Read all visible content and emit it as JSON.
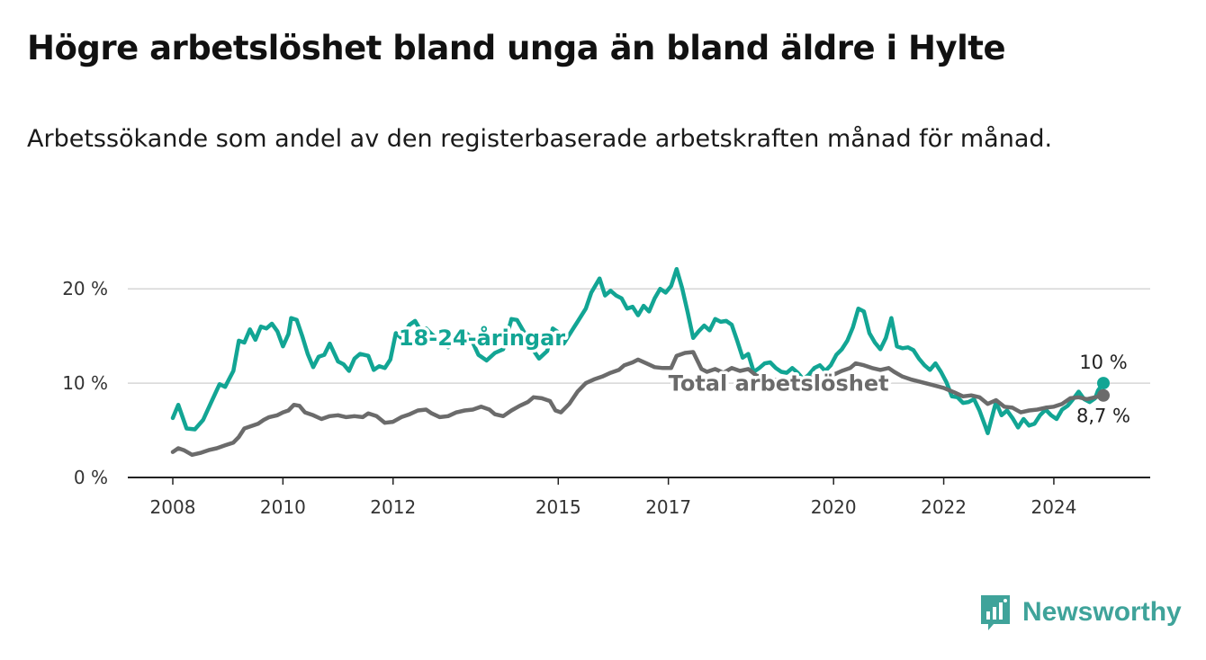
{
  "title": "Högre arbetslöshet bland unga än bland äldre i Hylte",
  "subtitle": "Arbetssökande som andel av den registerbaserade arbetskraften månad för månad.",
  "brand": {
    "name": "Newsworthy",
    "icon": "bar-chart-speech-icon",
    "color": "#3fa39a"
  },
  "chart_data": {
    "type": "line",
    "x_range": [
      2008.0,
      2024.9
    ],
    "ylim": [
      0,
      22.5
    ],
    "y_ticks": [
      0,
      10,
      20
    ],
    "y_tick_labels": [
      "0 %",
      "10 %",
      "20 %"
    ],
    "x_ticks": [
      2008,
      2010,
      2012,
      2015,
      2017,
      2020,
      2022,
      2024
    ],
    "x_tick_labels": [
      "2008",
      "2010",
      "2012",
      "2015",
      "2017",
      "2020",
      "2022",
      "2024"
    ],
    "grid": "horizontal",
    "series": [
      {
        "name": "18-24-åringar",
        "color": "#12a594",
        "end_label": "10 %",
        "points": [
          [
            2008.0,
            6.3
          ],
          [
            2008.1,
            7.7
          ],
          [
            2008.25,
            5.2
          ],
          [
            2008.4,
            5.1
          ],
          [
            2008.55,
            6.1
          ],
          [
            2008.7,
            8.0
          ],
          [
            2008.85,
            9.9
          ],
          [
            2008.95,
            9.6
          ],
          [
            2009.1,
            11.3
          ],
          [
            2009.2,
            14.5
          ],
          [
            2009.3,
            14.3
          ],
          [
            2009.4,
            15.7
          ],
          [
            2009.5,
            14.6
          ],
          [
            2009.6,
            16.0
          ],
          [
            2009.7,
            15.8
          ],
          [
            2009.8,
            16.3
          ],
          [
            2009.9,
            15.5
          ],
          [
            2010.0,
            13.9
          ],
          [
            2010.1,
            15.2
          ],
          [
            2010.15,
            16.9
          ],
          [
            2010.25,
            16.7
          ],
          [
            2010.35,
            15.0
          ],
          [
            2010.45,
            13.1
          ],
          [
            2010.55,
            11.7
          ],
          [
            2010.65,
            12.8
          ],
          [
            2010.75,
            13.0
          ],
          [
            2010.85,
            14.2
          ],
          [
            2011.0,
            12.3
          ],
          [
            2011.1,
            12.0
          ],
          [
            2011.2,
            11.3
          ],
          [
            2011.3,
            12.6
          ],
          [
            2011.4,
            13.1
          ],
          [
            2011.55,
            12.9
          ],
          [
            2011.65,
            11.4
          ],
          [
            2011.75,
            11.8
          ],
          [
            2011.85,
            11.6
          ],
          [
            2011.95,
            12.5
          ],
          [
            2012.05,
            15.3
          ],
          [
            2012.15,
            14.8
          ],
          [
            2012.3,
            16.2
          ],
          [
            2012.4,
            16.6
          ],
          [
            2012.5,
            15.6
          ],
          [
            2012.6,
            15.8
          ],
          [
            2012.7,
            15.2
          ],
          [
            2012.85,
            14.5
          ],
          [
            2013.0,
            13.8
          ],
          [
            2013.15,
            15.2
          ],
          [
            2013.3,
            15.5
          ],
          [
            2013.4,
            14.9
          ],
          [
            2013.55,
            13.0
          ],
          [
            2013.7,
            12.4
          ],
          [
            2013.85,
            13.2
          ],
          [
            2014.0,
            13.6
          ],
          [
            2014.15,
            16.8
          ],
          [
            2014.25,
            16.7
          ],
          [
            2014.4,
            15.2
          ],
          [
            2014.5,
            13.9
          ],
          [
            2014.65,
            12.6
          ],
          [
            2014.8,
            13.4
          ],
          [
            2014.9,
            15.8
          ],
          [
            2015.0,
            15.4
          ],
          [
            2015.1,
            14.2
          ],
          [
            2015.25,
            15.6
          ],
          [
            2015.35,
            16.5
          ],
          [
            2015.5,
            17.9
          ],
          [
            2015.6,
            19.6
          ],
          [
            2015.75,
            21.1
          ],
          [
            2015.85,
            19.3
          ],
          [
            2015.95,
            19.8
          ],
          [
            2016.05,
            19.3
          ],
          [
            2016.15,
            19.0
          ],
          [
            2016.25,
            17.9
          ],
          [
            2016.35,
            18.1
          ],
          [
            2016.45,
            17.2
          ],
          [
            2016.55,
            18.2
          ],
          [
            2016.65,
            17.6
          ],
          [
            2016.75,
            19.0
          ],
          [
            2016.85,
            20.0
          ],
          [
            2016.95,
            19.6
          ],
          [
            2017.05,
            20.3
          ],
          [
            2017.15,
            22.1
          ],
          [
            2017.25,
            20.1
          ],
          [
            2017.35,
            17.5
          ],
          [
            2017.45,
            14.8
          ],
          [
            2017.55,
            15.5
          ],
          [
            2017.65,
            16.1
          ],
          [
            2017.75,
            15.6
          ],
          [
            2017.85,
            16.8
          ],
          [
            2017.95,
            16.5
          ],
          [
            2018.05,
            16.6
          ],
          [
            2018.15,
            16.2
          ],
          [
            2018.25,
            14.5
          ],
          [
            2018.35,
            12.7
          ],
          [
            2018.45,
            13.1
          ],
          [
            2018.55,
            11.2
          ],
          [
            2018.65,
            11.6
          ],
          [
            2018.75,
            12.1
          ],
          [
            2018.85,
            12.2
          ],
          [
            2018.95,
            11.6
          ],
          [
            2019.05,
            11.2
          ],
          [
            2019.15,
            11.1
          ],
          [
            2019.25,
            11.6
          ],
          [
            2019.35,
            11.1
          ],
          [
            2019.45,
            10.4
          ],
          [
            2019.55,
            10.9
          ],
          [
            2019.65,
            11.6
          ],
          [
            2019.75,
            11.9
          ],
          [
            2019.85,
            11.3
          ],
          [
            2019.95,
            11.9
          ],
          [
            2020.05,
            13.0
          ],
          [
            2020.15,
            13.6
          ],
          [
            2020.25,
            14.5
          ],
          [
            2020.35,
            15.9
          ],
          [
            2020.45,
            17.9
          ],
          [
            2020.55,
            17.6
          ],
          [
            2020.65,
            15.3
          ],
          [
            2020.75,
            14.3
          ],
          [
            2020.85,
            13.6
          ],
          [
            2020.95,
            14.8
          ],
          [
            2021.05,
            16.9
          ],
          [
            2021.15,
            13.9
          ],
          [
            2021.25,
            13.7
          ],
          [
            2021.35,
            13.8
          ],
          [
            2021.45,
            13.5
          ],
          [
            2021.55,
            12.6
          ],
          [
            2021.65,
            11.9
          ],
          [
            2021.75,
            11.4
          ],
          [
            2021.85,
            12.1
          ],
          [
            2021.95,
            11.2
          ],
          [
            2022.05,
            10.1
          ],
          [
            2022.15,
            8.6
          ],
          [
            2022.25,
            8.5
          ],
          [
            2022.35,
            7.9
          ],
          [
            2022.45,
            8.0
          ],
          [
            2022.55,
            8.3
          ],
          [
            2022.65,
            7.1
          ],
          [
            2022.75,
            5.5
          ],
          [
            2022.8,
            4.7
          ],
          [
            2022.9,
            6.9
          ],
          [
            2022.95,
            8.0
          ],
          [
            2023.05,
            6.6
          ],
          [
            2023.15,
            7.1
          ],
          [
            2023.25,
            6.3
          ],
          [
            2023.35,
            5.3
          ],
          [
            2023.45,
            6.2
          ],
          [
            2023.55,
            5.5
          ],
          [
            2023.65,
            5.7
          ],
          [
            2023.75,
            6.6
          ],
          [
            2023.85,
            7.2
          ],
          [
            2023.95,
            6.6
          ],
          [
            2024.05,
            6.2
          ],
          [
            2024.15,
            7.2
          ],
          [
            2024.25,
            7.6
          ],
          [
            2024.35,
            8.3
          ],
          [
            2024.45,
            9.1
          ],
          [
            2024.55,
            8.3
          ],
          [
            2024.65,
            8.0
          ],
          [
            2024.75,
            8.4
          ],
          [
            2024.8,
            9.2
          ],
          [
            2024.9,
            10.0
          ]
        ]
      },
      {
        "name": "Total arbetslöshet",
        "color": "#6b6b6b",
        "end_label": "8,7 %",
        "points": [
          [
            2008.0,
            2.7
          ],
          [
            2008.1,
            3.1
          ],
          [
            2008.2,
            2.9
          ],
          [
            2008.35,
            2.4
          ],
          [
            2008.5,
            2.6
          ],
          [
            2008.65,
            2.9
          ],
          [
            2008.8,
            3.1
          ],
          [
            2008.95,
            3.4
          ],
          [
            2009.1,
            3.7
          ],
          [
            2009.2,
            4.3
          ],
          [
            2009.3,
            5.2
          ],
          [
            2009.4,
            5.4
          ],
          [
            2009.55,
            5.7
          ],
          [
            2009.65,
            6.1
          ],
          [
            2009.75,
            6.4
          ],
          [
            2009.9,
            6.6
          ],
          [
            2010.0,
            6.9
          ],
          [
            2010.1,
            7.1
          ],
          [
            2010.2,
            7.7
          ],
          [
            2010.3,
            7.6
          ],
          [
            2010.4,
            6.9
          ],
          [
            2010.55,
            6.6
          ],
          [
            2010.7,
            6.2
          ],
          [
            2010.85,
            6.5
          ],
          [
            2011.0,
            6.6
          ],
          [
            2011.15,
            6.4
          ],
          [
            2011.3,
            6.5
          ],
          [
            2011.45,
            6.4
          ],
          [
            2011.55,
            6.8
          ],
          [
            2011.7,
            6.5
          ],
          [
            2011.85,
            5.8
          ],
          [
            2012.0,
            5.9
          ],
          [
            2012.15,
            6.4
          ],
          [
            2012.3,
            6.7
          ],
          [
            2012.45,
            7.1
          ],
          [
            2012.6,
            7.2
          ],
          [
            2012.7,
            6.8
          ],
          [
            2012.85,
            6.4
          ],
          [
            2013.0,
            6.5
          ],
          [
            2013.15,
            6.9
          ],
          [
            2013.3,
            7.1
          ],
          [
            2013.45,
            7.2
          ],
          [
            2013.6,
            7.5
          ],
          [
            2013.75,
            7.2
          ],
          [
            2013.85,
            6.7
          ],
          [
            2014.0,
            6.5
          ],
          [
            2014.15,
            7.1
          ],
          [
            2014.3,
            7.6
          ],
          [
            2014.45,
            8.0
          ],
          [
            2014.55,
            8.5
          ],
          [
            2014.7,
            8.4
          ],
          [
            2014.85,
            8.1
          ],
          [
            2014.95,
            7.1
          ],
          [
            2015.05,
            6.9
          ],
          [
            2015.2,
            7.8
          ],
          [
            2015.35,
            9.1
          ],
          [
            2015.5,
            10.0
          ],
          [
            2015.65,
            10.4
          ],
          [
            2015.8,
            10.7
          ],
          [
            2015.95,
            11.1
          ],
          [
            2016.1,
            11.4
          ],
          [
            2016.2,
            11.9
          ],
          [
            2016.35,
            12.2
          ],
          [
            2016.45,
            12.5
          ],
          [
            2016.6,
            12.1
          ],
          [
            2016.75,
            11.7
          ],
          [
            2016.9,
            11.6
          ],
          [
            2017.05,
            11.6
          ],
          [
            2017.15,
            12.9
          ],
          [
            2017.3,
            13.2
          ],
          [
            2017.45,
            13.3
          ],
          [
            2017.6,
            11.5
          ],
          [
            2017.7,
            11.2
          ],
          [
            2017.85,
            11.5
          ],
          [
            2018.0,
            11.1
          ],
          [
            2018.15,
            11.6
          ],
          [
            2018.3,
            11.3
          ],
          [
            2018.45,
            11.5
          ],
          [
            2018.6,
            10.8
          ],
          [
            2018.8,
            10.5
          ],
          [
            2019.0,
            10.3
          ],
          [
            2019.2,
            10.4
          ],
          [
            2019.4,
            10.2
          ],
          [
            2019.6,
            10.6
          ],
          [
            2019.8,
            10.5
          ],
          [
            2020.0,
            10.9
          ],
          [
            2020.15,
            11.3
          ],
          [
            2020.3,
            11.6
          ],
          [
            2020.4,
            12.1
          ],
          [
            2020.55,
            11.9
          ],
          [
            2020.7,
            11.6
          ],
          [
            2020.85,
            11.4
          ],
          [
            2021.0,
            11.6
          ],
          [
            2021.1,
            11.2
          ],
          [
            2021.25,
            10.7
          ],
          [
            2021.4,
            10.4
          ],
          [
            2021.6,
            10.1
          ],
          [
            2021.8,
            9.8
          ],
          [
            2022.0,
            9.5
          ],
          [
            2022.2,
            9.0
          ],
          [
            2022.35,
            8.6
          ],
          [
            2022.5,
            8.7
          ],
          [
            2022.65,
            8.5
          ],
          [
            2022.8,
            7.8
          ],
          [
            2022.95,
            8.2
          ],
          [
            2023.1,
            7.5
          ],
          [
            2023.25,
            7.4
          ],
          [
            2023.4,
            6.9
          ],
          [
            2023.55,
            7.1
          ],
          [
            2023.7,
            7.2
          ],
          [
            2023.85,
            7.4
          ],
          [
            2024.0,
            7.5
          ],
          [
            2024.15,
            7.8
          ],
          [
            2024.3,
            8.4
          ],
          [
            2024.45,
            8.5
          ],
          [
            2024.6,
            8.3
          ],
          [
            2024.75,
            8.5
          ],
          [
            2024.9,
            8.7
          ]
        ]
      }
    ]
  }
}
